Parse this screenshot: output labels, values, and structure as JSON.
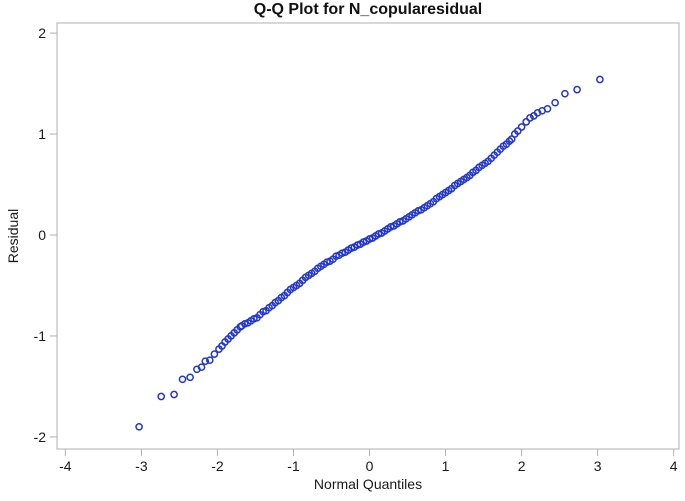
{
  "chart_data": {
    "type": "scatter",
    "title": "Q-Q Plot for N_copularesidual",
    "xlabel": "Normal Quantiles",
    "ylabel": "Residual",
    "xlim": [
      -4.11,
      4.07
    ],
    "ylim": [
      -2.12,
      2.1
    ],
    "xticks": [
      -4,
      -3,
      -2,
      -1,
      0,
      1,
      2,
      3,
      4
    ],
    "yticks": [
      -2,
      -1,
      0,
      1,
      2
    ],
    "grid": false,
    "legend": "none",
    "marker": {
      "shape": "open-circle",
      "color": "#2236cc"
    },
    "frame_color": "#b0b0b0",
    "points": [
      [
        -3.03,
        -1.9
      ],
      [
        -2.74,
        -1.6
      ],
      [
        -2.57,
        -1.58
      ],
      [
        -2.46,
        -1.43
      ],
      [
        -2.36,
        -1.41
      ],
      [
        -2.27,
        -1.33
      ],
      [
        -2.21,
        -1.31
      ],
      [
        -2.16,
        -1.25
      ],
      [
        -2.1,
        -1.24
      ],
      [
        -2.04,
        -1.18
      ],
      [
        -1.98,
        -1.13
      ],
      [
        -1.94,
        -1.1
      ],
      [
        -1.9,
        -1.06
      ],
      [
        -1.86,
        -1.03
      ],
      [
        -1.82,
        -1.0
      ],
      [
        -1.78,
        -0.97
      ],
      [
        -1.74,
        -0.94
      ],
      [
        -1.7,
        -0.91
      ],
      [
        -1.68,
        -0.9
      ],
      [
        -1.64,
        -0.88
      ],
      [
        -1.6,
        -0.87
      ],
      [
        -1.56,
        -0.85
      ],
      [
        -1.52,
        -0.83
      ],
      [
        -1.48,
        -0.82
      ],
      [
        -1.44,
        -0.79
      ],
      [
        -1.4,
        -0.76
      ],
      [
        -1.36,
        -0.75
      ],
      [
        -1.32,
        -0.72
      ],
      [
        -1.28,
        -0.7
      ],
      [
        -1.24,
        -0.67
      ],
      [
        -1.2,
        -0.65
      ],
      [
        -1.16,
        -0.62
      ],
      [
        -1.12,
        -0.6
      ],
      [
        -1.08,
        -0.57
      ],
      [
        -1.04,
        -0.54
      ],
      [
        -1.0,
        -0.52
      ],
      [
        -0.96,
        -0.5
      ],
      [
        -0.92,
        -0.48
      ],
      [
        -0.88,
        -0.45
      ],
      [
        -0.84,
        -0.42
      ],
      [
        -0.8,
        -0.4
      ],
      [
        -0.76,
        -0.38
      ],
      [
        -0.72,
        -0.36
      ],
      [
        -0.68,
        -0.33
      ],
      [
        -0.64,
        -0.31
      ],
      [
        -0.6,
        -0.29
      ],
      [
        -0.56,
        -0.27
      ],
      [
        -0.52,
        -0.26
      ],
      [
        -0.48,
        -0.24
      ],
      [
        -0.44,
        -0.21
      ],
      [
        -0.4,
        -0.2
      ],
      [
        -0.36,
        -0.18
      ],
      [
        -0.32,
        -0.17
      ],
      [
        -0.28,
        -0.15
      ],
      [
        -0.24,
        -0.13
      ],
      [
        -0.2,
        -0.12
      ],
      [
        -0.16,
        -0.1
      ],
      [
        -0.12,
        -0.09
      ],
      [
        -0.08,
        -0.07
      ],
      [
        -0.04,
        -0.06
      ],
      [
        0.0,
        -0.04
      ],
      [
        0.04,
        -0.03
      ],
      [
        0.08,
        -0.01
      ],
      [
        0.12,
        0.01
      ],
      [
        0.16,
        0.02
      ],
      [
        0.2,
        0.04
      ],
      [
        0.24,
        0.06
      ],
      [
        0.28,
        0.08
      ],
      [
        0.32,
        0.09
      ],
      [
        0.36,
        0.11
      ],
      [
        0.4,
        0.13
      ],
      [
        0.44,
        0.14
      ],
      [
        0.48,
        0.16
      ],
      [
        0.52,
        0.18
      ],
      [
        0.56,
        0.2
      ],
      [
        0.6,
        0.22
      ],
      [
        0.64,
        0.24
      ],
      [
        0.68,
        0.25
      ],
      [
        0.72,
        0.27
      ],
      [
        0.76,
        0.29
      ],
      [
        0.8,
        0.31
      ],
      [
        0.84,
        0.33
      ],
      [
        0.88,
        0.36
      ],
      [
        0.92,
        0.38
      ],
      [
        0.96,
        0.4
      ],
      [
        1.0,
        0.42
      ],
      [
        1.04,
        0.44
      ],
      [
        1.08,
        0.46
      ],
      [
        1.12,
        0.49
      ],
      [
        1.16,
        0.51
      ],
      [
        1.2,
        0.53
      ],
      [
        1.24,
        0.55
      ],
      [
        1.28,
        0.57
      ],
      [
        1.32,
        0.59
      ],
      [
        1.36,
        0.62
      ],
      [
        1.4,
        0.64
      ],
      [
        1.44,
        0.67
      ],
      [
        1.48,
        0.69
      ],
      [
        1.52,
        0.71
      ],
      [
        1.56,
        0.73
      ],
      [
        1.6,
        0.76
      ],
      [
        1.64,
        0.79
      ],
      [
        1.68,
        0.82
      ],
      [
        1.72,
        0.85
      ],
      [
        1.76,
        0.88
      ],
      [
        1.8,
        0.9
      ],
      [
        1.84,
        0.93
      ],
      [
        1.87,
        0.95
      ],
      [
        1.91,
        1.0
      ],
      [
        1.95,
        1.03
      ],
      [
        2.0,
        1.07
      ],
      [
        2.06,
        1.12
      ],
      [
        2.11,
        1.16
      ],
      [
        2.16,
        1.18
      ],
      [
        2.21,
        1.21
      ],
      [
        2.27,
        1.23
      ],
      [
        2.34,
        1.25
      ],
      [
        2.44,
        1.31
      ],
      [
        2.57,
        1.4
      ],
      [
        2.73,
        1.44
      ],
      [
        3.03,
        1.54
      ]
    ]
  }
}
